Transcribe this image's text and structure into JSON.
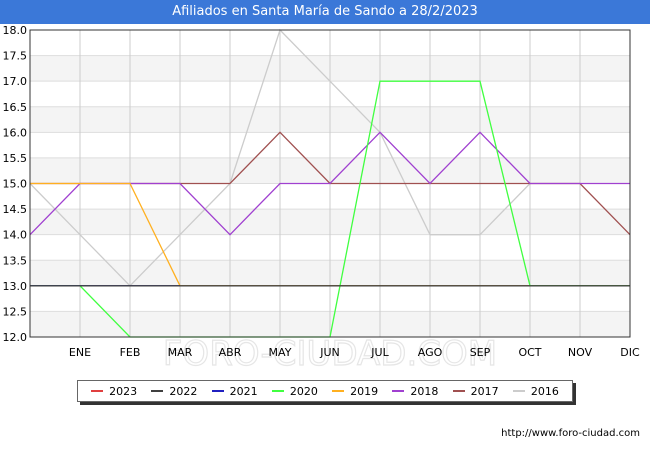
{
  "title": "Afiliados en Santa María de Sando a 28/2/2023",
  "watermark": "FORO-CIUDAD.COM",
  "source_url": "http://www.foro-ciudad.com",
  "chart_data": {
    "type": "line",
    "categories": [
      "",
      "ENE",
      "FEB",
      "MAR",
      "ABR",
      "MAY",
      "JUN",
      "JUL",
      "AGO",
      "SEP",
      "OCT",
      "NOV",
      "DIC"
    ],
    "ylim": [
      12.0,
      18.0
    ],
    "yticks": [
      "12.0",
      "12.5",
      "13.0",
      "13.5",
      "14.0",
      "14.5",
      "15.0",
      "15.5",
      "16.0",
      "16.5",
      "17.0",
      "17.5",
      "18.0"
    ],
    "grid": true,
    "legend_position": "bottom",
    "series": [
      {
        "name": "2016",
        "color": "#cccccc",
        "values": [
          15,
          14,
          13,
          14,
          15,
          18,
          17,
          16,
          14,
          14,
          15,
          null,
          null
        ]
      },
      {
        "name": "2017",
        "color": "#a05050",
        "values": [
          15,
          15,
          15,
          15,
          15,
          16,
          15,
          15,
          15,
          15,
          15,
          15,
          14
        ]
      },
      {
        "name": "2018",
        "color": "#a040d0",
        "values": [
          14,
          15,
          15,
          15,
          14,
          15,
          15,
          16,
          15,
          16,
          15,
          15,
          15
        ]
      },
      {
        "name": "2019",
        "color": "#ffb020",
        "values": [
          15,
          15,
          15,
          13,
          13,
          13,
          13,
          13,
          13,
          13,
          13,
          13,
          13
        ]
      },
      {
        "name": "2020",
        "color": "#40ff40",
        "values": [
          13,
          13,
          12,
          12,
          12,
          12,
          12,
          17,
          17,
          17,
          13,
          13,
          13
        ]
      },
      {
        "name": "2021",
        "color": "#2020c0",
        "values": [
          13,
          13,
          13,
          13,
          null,
          null,
          null,
          null,
          null,
          null,
          null,
          null,
          null
        ]
      },
      {
        "name": "2022",
        "color": "#404040",
        "values": [
          13,
          13,
          13,
          13,
          13,
          13,
          13,
          13,
          13,
          13,
          13,
          13,
          13
        ]
      },
      {
        "name": "2023",
        "color": "#e04040",
        "values": [
          null,
          null,
          null,
          null,
          null,
          null,
          null,
          null,
          null,
          null,
          null,
          null,
          null
        ]
      }
    ],
    "legend_order": [
      "2023",
      "2022",
      "2021",
      "2020",
      "2019",
      "2018",
      "2017",
      "2016"
    ]
  }
}
